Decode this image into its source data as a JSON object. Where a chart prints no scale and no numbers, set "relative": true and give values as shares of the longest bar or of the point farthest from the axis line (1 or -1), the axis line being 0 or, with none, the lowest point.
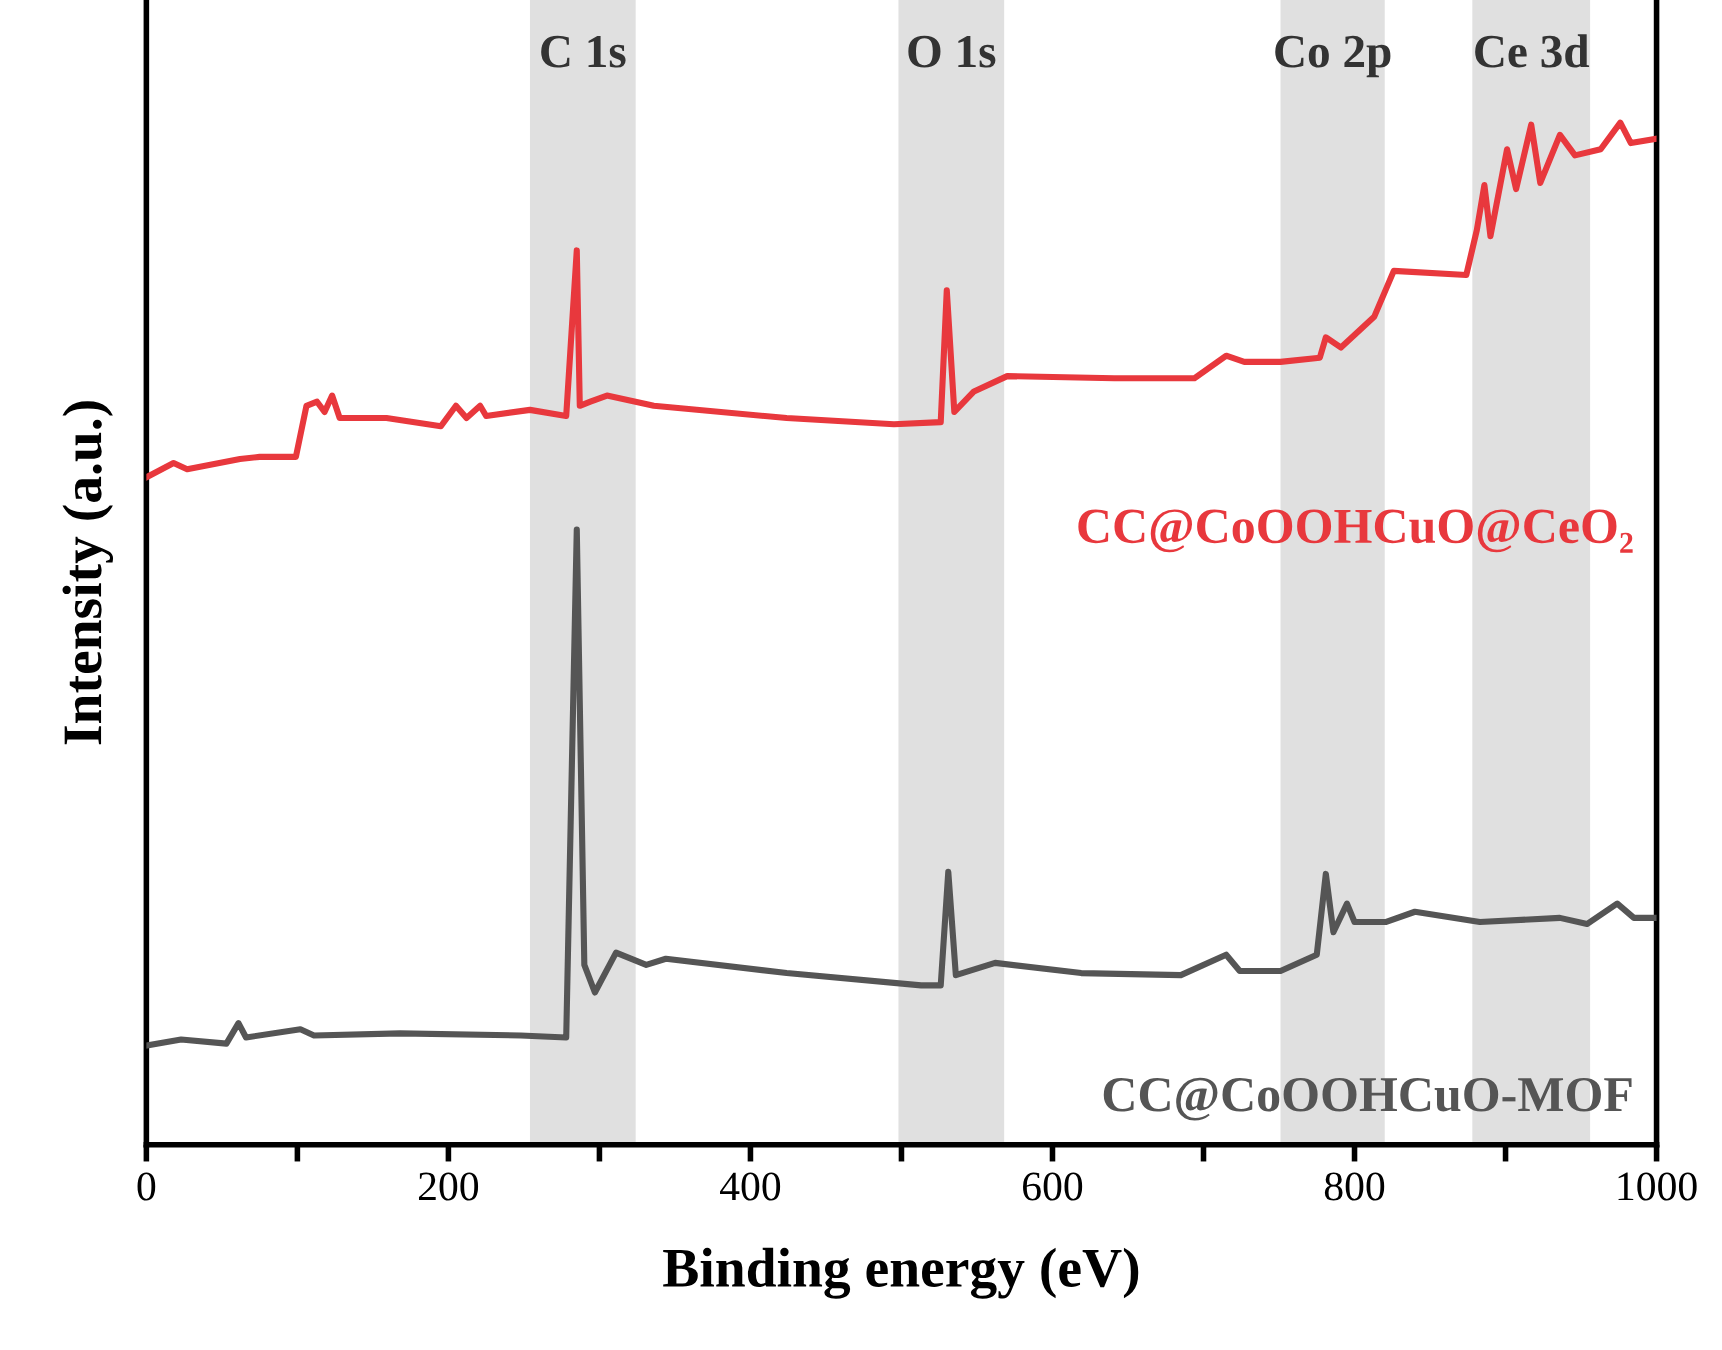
{
  "chart_data": {
    "type": "line",
    "relative": true,
    "xlabel": "Binding energy (eV)",
    "ylabel": "Intensity (a.u.)",
    "xlim": [
      0,
      1000
    ],
    "xticks": [
      0,
      {
        "value": 100,
        "label": null
      },
      200,
      {
        "value": 300,
        "label": null
      },
      400,
      {
        "value": 500,
        "label": null
      },
      600,
      {
        "value": 700,
        "label": null
      },
      800,
      {
        "value": 900,
        "label": null
      },
      1000
    ],
    "tick_labels": "x",
    "grid": false,
    "legend": false,
    "line_style": "solid",
    "marker": "none",
    "bands": [
      {
        "axis": "x",
        "from": 254,
        "to": 324,
        "label": "C 1s",
        "color": "#e0e0e0"
      },
      {
        "axis": "x",
        "from": 498,
        "to": 568,
        "label": "O 1s",
        "color": "#e0e0e0"
      },
      {
        "axis": "x",
        "from": 751,
        "to": 820,
        "label": "Co 2p",
        "color": "#e0e0e0"
      },
      {
        "axis": "x",
        "from": 878,
        "to": 956,
        "label": "Ce 3d",
        "color": "#e0e0e0"
      }
    ],
    "series": [
      {
        "name": "CC@CoOOHCuO@CeO₂",
        "color": "#e8383d",
        "x": [
          0,
          18,
          27,
          62,
          75,
          99,
          106,
          113,
          118,
          123,
          128,
          159,
          195,
          205,
          212,
          221,
          225,
          254,
          278,
          285,
          287,
          294,
          305,
          336,
          424,
          495,
          526,
          530,
          535,
          548,
          570,
          641,
          694,
          715,
          727,
          751,
          777,
          781,
          791,
          813,
          826,
          874,
          881,
          886,
          890,
          901,
          907,
          917,
          923,
          936,
          946,
          963,
          976,
          983,
          999
        ],
        "values": [
          0.653,
          0.667,
          0.661,
          0.671,
          0.673,
          0.673,
          0.723,
          0.727,
          0.717,
          0.733,
          0.711,
          0.711,
          0.703,
          0.723,
          0.711,
          0.723,
          0.713,
          0.719,
          0.713,
          0.875,
          0.723,
          0.727,
          0.733,
          0.723,
          0.711,
          0.705,
          0.707,
          0.836,
          0.717,
          0.737,
          0.752,
          0.75,
          0.75,
          0.772,
          0.766,
          0.766,
          0.77,
          0.79,
          0.78,
          0.81,
          0.855,
          0.851,
          0.895,
          0.939,
          0.889,
          0.974,
          0.935,
          0.998,
          0.941,
          0.988,
          0.968,
          0.974,
          1.0,
          0.98,
          0.984
        ]
      },
      {
        "name": "CC@CoOOHCuO-MOF",
        "color": "#555555",
        "x": [
          0,
          23,
          53,
          61,
          66,
          102,
          111,
          168,
          248,
          278,
          285,
          290,
          297,
          311,
          331,
          344,
          424,
          513,
          526,
          531,
          536,
          562,
          619,
          685,
          715,
          724,
          751,
          775,
          781,
          786,
          795,
          800,
          821,
          840,
          883,
          936,
          954,
          974,
          985,
          999
        ],
        "values": [
          0.097,
          0.103,
          0.099,
          0.119,
          0.105,
          0.113,
          0.107,
          0.109,
          0.107,
          0.105,
          0.602,
          0.176,
          0.149,
          0.188,
          0.176,
          0.182,
          0.168,
          0.156,
          0.156,
          0.267,
          0.166,
          0.178,
          0.168,
          0.166,
          0.186,
          0.17,
          0.17,
          0.186,
          0.265,
          0.208,
          0.236,
          0.218,
          0.218,
          0.228,
          0.218,
          0.222,
          0.216,
          0.236,
          0.222,
          0.222
        ]
      }
    ]
  }
}
